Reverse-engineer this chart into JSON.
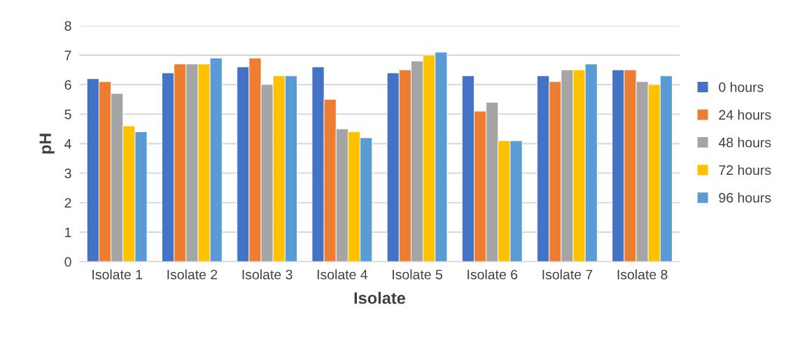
{
  "chart_data": {
    "type": "bar",
    "xlabel": "Isolate",
    "ylabel": "pH",
    "categories": [
      "Isolate 1",
      "Isolate 2",
      "Isolate 3",
      "Isolate 4",
      "Isolate 5",
      "Isolate 6",
      "Isolate 7",
      "Isolate 8"
    ],
    "series": [
      {
        "name": "0 hours",
        "color": "#4472c4",
        "values": [
          6.2,
          6.4,
          6.6,
          6.6,
          6.4,
          6.3,
          6.3,
          6.5
        ]
      },
      {
        "name": "24 hours",
        "color": "#ed7d31",
        "values": [
          6.1,
          6.7,
          6.9,
          5.5,
          6.5,
          5.1,
          6.1,
          6.5
        ]
      },
      {
        "name": "48 hours",
        "color": "#a5a5a5",
        "values": [
          5.7,
          6.7,
          6.0,
          4.5,
          6.8,
          5.4,
          6.5,
          6.1
        ]
      },
      {
        "name": "72 hours",
        "color": "#ffc000",
        "values": [
          4.6,
          6.7,
          6.3,
          4.4,
          7.0,
          4.1,
          6.5,
          6.0
        ]
      },
      {
        "name": "96 hours",
        "color": "#5b9bd5",
        "values": [
          4.4,
          6.9,
          6.3,
          4.2,
          7.1,
          4.1,
          6.7,
          6.3
        ]
      }
    ],
    "ylim": [
      0,
      8
    ],
    "yticks": [
      0,
      1,
      2,
      3,
      4,
      5,
      6,
      7,
      8
    ],
    "grid": "y",
    "legend": "right"
  }
}
